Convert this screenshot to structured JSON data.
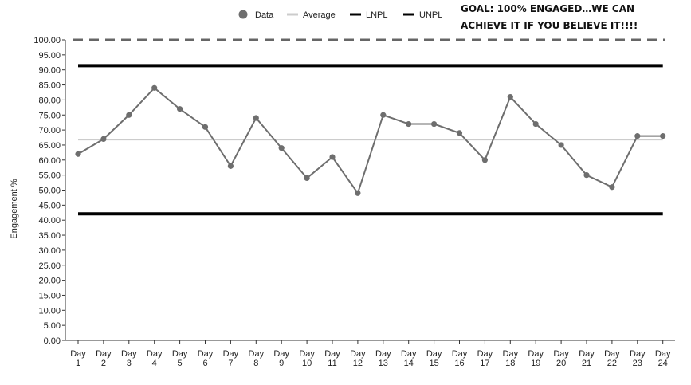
{
  "chart_data": {
    "type": "line",
    "ylabel": "Engagement %",
    "xlabel": "",
    "ylim": [
      0,
      100
    ],
    "y_ticks": [
      "0.00",
      "5.00",
      "10.00",
      "15.00",
      "20.00",
      "25.00",
      "30.00",
      "35.00",
      "40.00",
      "45.00",
      "50.00",
      "55.00",
      "60.00",
      "65.00",
      "70.00",
      "75.00",
      "80.00",
      "85.00",
      "90.00",
      "95.00",
      "100.00"
    ],
    "categories": [
      [
        "Day",
        "1"
      ],
      [
        "Day",
        "2"
      ],
      [
        "Day",
        "3"
      ],
      [
        "Day",
        "4"
      ],
      [
        "Day",
        "5"
      ],
      [
        "Day",
        "6"
      ],
      [
        "Day",
        "7"
      ],
      [
        "Day",
        "8"
      ],
      [
        "Day",
        "9"
      ],
      [
        "Day",
        "10"
      ],
      [
        "Day",
        "11"
      ],
      [
        "Day",
        "12"
      ],
      [
        "Day",
        "13"
      ],
      [
        "Day",
        "14"
      ],
      [
        "Day",
        "15"
      ],
      [
        "Day",
        "16"
      ],
      [
        "Day",
        "17"
      ],
      [
        "Day",
        "18"
      ],
      [
        "Day",
        "19"
      ],
      [
        "Day",
        "20"
      ],
      [
        "Day",
        "21"
      ],
      [
        "Day",
        "22"
      ],
      [
        "Day",
        "23"
      ],
      [
        "Day",
        "24"
      ]
    ],
    "series": [
      {
        "name": "Data",
        "values": [
          62,
          67,
          75,
          84,
          77,
          71,
          58,
          74,
          64,
          54,
          61,
          49,
          75,
          72,
          72,
          69,
          60,
          81,
          72,
          65,
          55,
          51,
          68,
          68
        ],
        "color": "#6e6e6e"
      }
    ],
    "reference_lines": [
      {
        "name": "Average",
        "value": 66.8,
        "color": "#cccccc"
      },
      {
        "name": "LNPL",
        "value": 42.1,
        "color": "#000000"
      },
      {
        "name": "UNPL",
        "value": 91.4,
        "color": "#000000"
      },
      {
        "name": "Goal",
        "value": 100,
        "color": "#666666",
        "dashed": true
      }
    ],
    "legend": [
      {
        "label": "Data",
        "symbol": "circle",
        "color": "#6e6e6e"
      },
      {
        "label": "Average",
        "symbol": "line",
        "color": "#cccccc"
      },
      {
        "label": "LNPL",
        "symbol": "line",
        "color": "#000000"
      },
      {
        "label": "UNPL",
        "symbol": "line",
        "color": "#000000"
      }
    ],
    "legend_position": "top-right",
    "annotation": [
      "GOAL: 100% ENGAGED…WE CAN",
      "ACHIEVE IT IF YOU BELIEVE IT!!!!"
    ],
    "grid": false
  }
}
